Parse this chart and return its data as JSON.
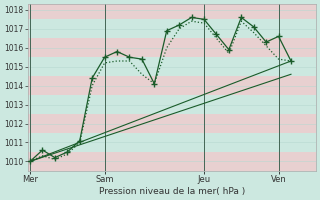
{
  "xlabel": "Pression niveau de la mer( hPa )",
  "bg_color": "#cce8e0",
  "grid_color_minor": "#e8c8c8",
  "grid_color_major": "#b8d8d0",
  "line_color": "#1a5c2a",
  "ylim": [
    1009.5,
    1018.3
  ],
  "yticks": [
    1010,
    1011,
    1012,
    1013,
    1014,
    1015,
    1016,
    1017,
    1018
  ],
  "xtick_labels": [
    "Mer",
    "Sam",
    "Jeu",
    "Ven"
  ],
  "xtick_pos": [
    0,
    3,
    7,
    10
  ],
  "vline_pos": [
    0,
    3,
    7,
    10
  ],
  "xlim": [
    -0.1,
    11.5
  ],
  "series1_x": [
    0,
    0.5,
    1.0,
    1.5,
    2.0,
    2.5,
    3.0,
    3.5,
    4.0,
    4.5,
    5.0,
    5.5,
    6.0,
    6.5,
    7.0,
    7.5,
    8.0,
    8.5,
    9.0,
    9.5,
    10.0,
    10.5
  ],
  "series1_y": [
    1010.0,
    1010.6,
    1010.2,
    1010.5,
    1011.1,
    1014.4,
    1015.5,
    1015.8,
    1015.5,
    1015.4,
    1014.1,
    1016.9,
    1017.2,
    1017.6,
    1017.5,
    1016.7,
    1015.9,
    1017.6,
    1017.1,
    1016.3,
    1016.6,
    1015.3
  ],
  "series2_x": [
    0,
    0.5,
    1.0,
    1.5,
    2.0,
    2.5,
    3.0,
    3.5,
    4.0,
    4.5,
    5.0,
    5.5,
    6.0,
    6.5,
    7.0,
    7.5,
    8.0,
    8.5,
    9.0,
    9.5,
    10.0,
    10.5
  ],
  "series2_y": [
    1010.0,
    1010.3,
    1010.1,
    1010.4,
    1011.0,
    1014.0,
    1015.2,
    1015.3,
    1015.3,
    1014.6,
    1014.1,
    1016.0,
    1017.0,
    1017.4,
    1017.3,
    1016.5,
    1015.7,
    1017.4,
    1016.8,
    1016.1,
    1015.4,
    1015.3
  ],
  "series3_x": [
    0,
    10.5
  ],
  "series3_y": [
    1010.0,
    1015.3
  ],
  "series4_x": [
    0,
    10.5
  ],
  "series4_y": [
    1010.0,
    1014.6
  ]
}
